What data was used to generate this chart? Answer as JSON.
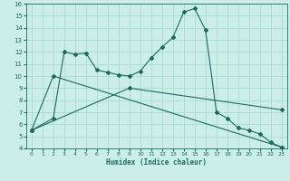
{
  "title": "",
  "xlabel": "Humidex (Indice chaleur)",
  "bg_color": "#cceee8",
  "line_color": "#1a6b5e",
  "grid_color": "#aaddcc",
  "xlim": [
    -0.5,
    23.5
  ],
  "ylim": [
    4,
    16
  ],
  "xticks": [
    0,
    1,
    2,
    3,
    4,
    5,
    6,
    7,
    8,
    9,
    10,
    11,
    12,
    13,
    14,
    15,
    16,
    17,
    18,
    19,
    20,
    21,
    22,
    23
  ],
  "yticks": [
    4,
    5,
    6,
    7,
    8,
    9,
    10,
    11,
    12,
    13,
    14,
    15,
    16
  ],
  "series": [
    {
      "x": [
        0,
        2,
        3,
        4,
        5,
        6,
        7,
        8,
        9,
        10,
        11,
        12,
        13,
        14,
        15,
        16,
        17,
        18,
        19,
        20,
        21,
        22,
        23
      ],
      "y": [
        5.5,
        6.5,
        12.0,
        11.8,
        11.9,
        10.5,
        10.3,
        10.1,
        10.0,
        10.4,
        11.5,
        12.4,
        13.2,
        15.3,
        15.6,
        13.8,
        7.0,
        6.5,
        5.7,
        5.5,
        5.2,
        4.5,
        4.1
      ]
    },
    {
      "x": [
        0,
        2,
        23
      ],
      "y": [
        5.5,
        10.0,
        4.1
      ]
    },
    {
      "x": [
        0,
        9,
        23
      ],
      "y": [
        5.5,
        9.0,
        7.2
      ]
    }
  ]
}
